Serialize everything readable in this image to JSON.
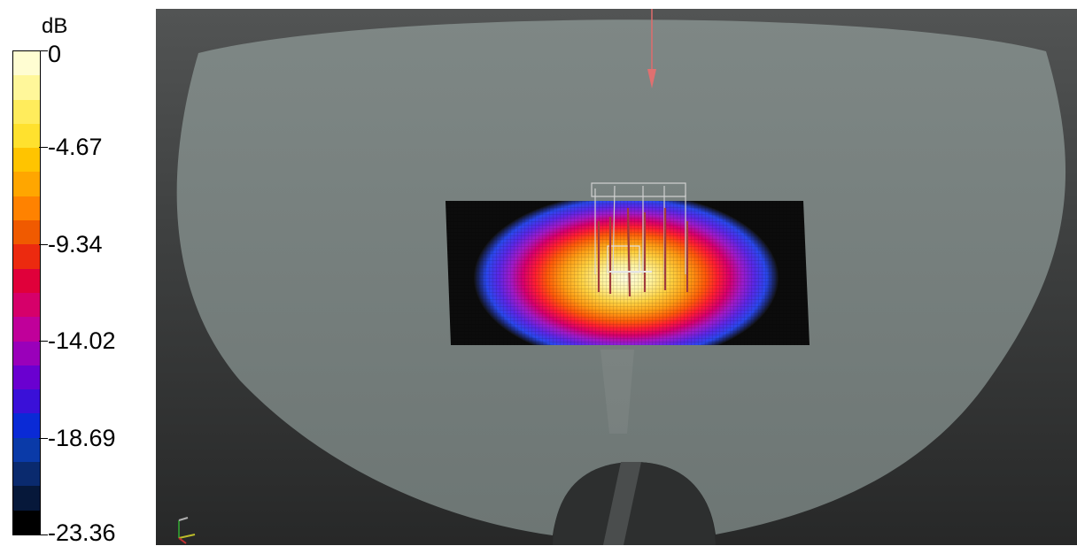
{
  "legend": {
    "unit": "dB",
    "ticks": [
      "0",
      "-4.67",
      "-9.34",
      "-14.02",
      "-18.69",
      "-23.36"
    ],
    "colors": [
      "#fffdd2",
      "#fff79a",
      "#ffec5c",
      "#ffe12e",
      "#ffc400",
      "#ffa600",
      "#ff8200",
      "#f05a00",
      "#ec2a0f",
      "#e0003a",
      "#d6006a",
      "#c0009a",
      "#9a00ba",
      "#6a00d0",
      "#3a10d8",
      "#0a2ad6",
      "#0a3aa8",
      "#0a2a6e",
      "#06183a",
      "#000000"
    ]
  },
  "viewport": {
    "background": "#3b3d3d",
    "surface_color": "#7d8683",
    "heatmap_scale": [
      "#fffde0",
      "#fff3a0",
      "#ffd040",
      "#ff9c14",
      "#ff5a0a",
      "#ff1e32",
      "#d8006e",
      "#a01ac8",
      "#5a28e6",
      "#2a48ee",
      "#111111"
    ]
  }
}
